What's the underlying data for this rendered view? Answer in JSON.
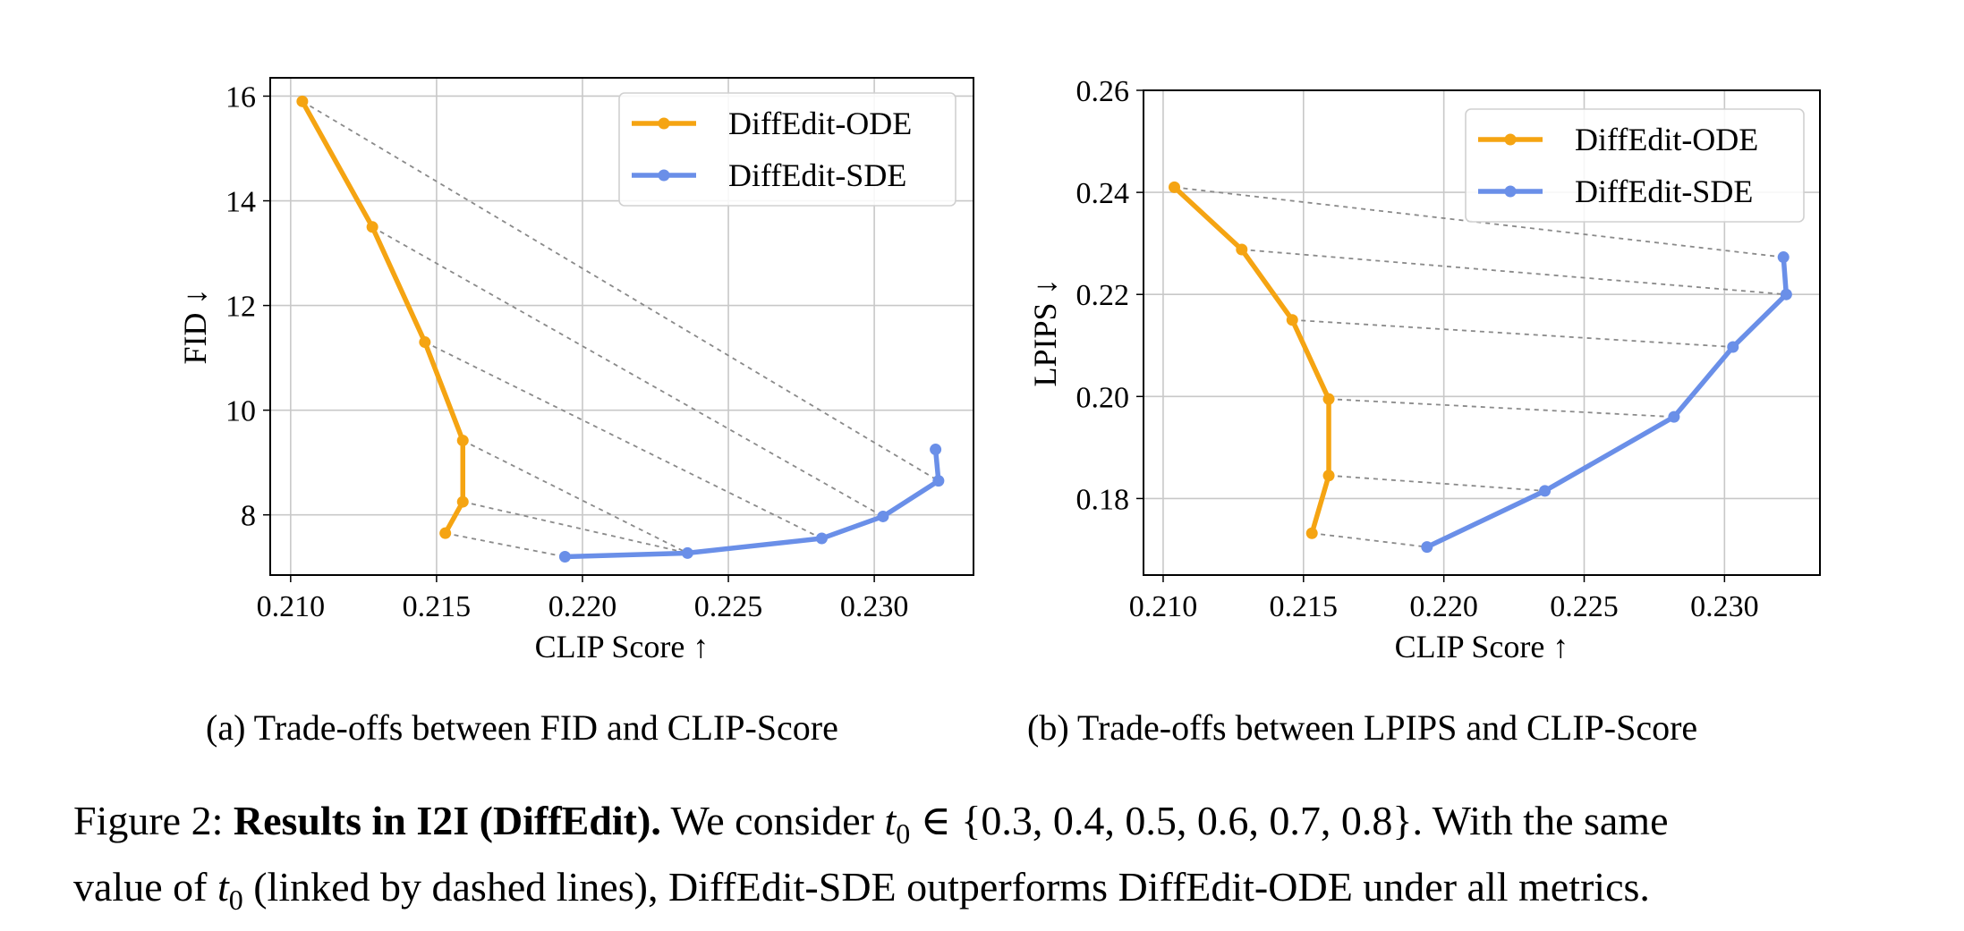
{
  "figure": {
    "label": "Figure 2:",
    "bold_title": "Results in I2I (DiffEdit).",
    "text_1": "We consider",
    "t_symbol": "t",
    "t_sub": "0",
    "set_text": "∈ {0.3, 0.4, 0.5, 0.6, 0.7, 0.8}.",
    "text_2": "With the same",
    "text_3": "value of",
    "text_4": "(linked by dashed lines), DiffEdit-SDE outperforms DiffEdit-ODE under all metrics."
  },
  "subcaptions": [
    "(a) Trade-offs between FID and CLIP-Score",
    "(b) Trade-offs between LPIPS and CLIP-Score"
  ],
  "colors": {
    "ode": "#F5A412",
    "sde": "#6A8FE8",
    "grid": "#C8C8C8",
    "dash": "#8A8A8A"
  },
  "chart_data": [
    {
      "type": "line",
      "title": "",
      "xlabel": "CLIP Score ↑",
      "ylabel": "FID ↓",
      "xlim": [
        0.2093,
        0.2334
      ],
      "ylim": [
        6.85,
        16.35
      ],
      "xticks": [
        0.21,
        0.215,
        0.22,
        0.225,
        0.23
      ],
      "xtick_labels": [
        "0.210",
        "0.215",
        "0.220",
        "0.225",
        "0.230"
      ],
      "yticks": [
        8,
        10,
        12,
        14,
        16
      ],
      "ytick_labels": [
        "8",
        "10",
        "12",
        "14",
        "16"
      ],
      "grid": true,
      "legend_position": "top-right",
      "series": [
        {
          "name": "DiffEdit-ODE",
          "color": "#F5A412",
          "x": [
            0.2104,
            0.2128,
            0.2146,
            0.2159,
            0.2159,
            0.2153
          ],
          "y": [
            15.9,
            13.5,
            11.3,
            9.42,
            8.25,
            7.65
          ]
        },
        {
          "name": "DiffEdit-SDE",
          "color": "#6A8FE8",
          "x": [
            0.2321,
            0.2322,
            0.2303,
            0.2282,
            0.2236,
            0.2194
          ],
          "y": [
            9.25,
            8.65,
            7.97,
            7.55,
            7.27,
            7.2
          ]
        }
      ],
      "links": [
        [
          0,
          1
        ],
        [
          1,
          2
        ],
        [
          2,
          3
        ],
        [
          3,
          4
        ],
        [
          4,
          4
        ],
        [
          5,
          5
        ]
      ]
    },
    {
      "type": "line",
      "title": "",
      "xlabel": "CLIP Score ↑",
      "ylabel": "LPIPS ↓",
      "xlim": [
        0.2093,
        0.2334
      ],
      "ylim": [
        0.165,
        0.26
      ],
      "xticks": [
        0.21,
        0.215,
        0.22,
        0.225,
        0.23
      ],
      "xtick_labels": [
        "0.210",
        "0.215",
        "0.220",
        "0.225",
        "0.230"
      ],
      "yticks": [
        0.18,
        0.2,
        0.22,
        0.24,
        0.26
      ],
      "ytick_labels": [
        "0.18",
        "0.20",
        "0.22",
        "0.24",
        "0.26"
      ],
      "grid": true,
      "legend_position": "top-right",
      "series": [
        {
          "name": "DiffEdit-ODE",
          "color": "#F5A412",
          "x": [
            0.2104,
            0.2128,
            0.2146,
            0.2159,
            0.2159,
            0.2153
          ],
          "y": [
            0.241,
            0.2288,
            0.215,
            0.1995,
            0.1845,
            0.1732
          ]
        },
        {
          "name": "DiffEdit-SDE",
          "color": "#6A8FE8",
          "x": [
            0.2321,
            0.2322,
            0.2303,
            0.2282,
            0.2236,
            0.2194
          ],
          "y": [
            0.2273,
            0.22,
            0.2097,
            0.196,
            0.1815,
            0.1705
          ]
        }
      ],
      "links": [
        [
          0,
          0
        ],
        [
          1,
          1
        ],
        [
          2,
          2
        ],
        [
          3,
          3
        ],
        [
          4,
          4
        ],
        [
          5,
          5
        ]
      ]
    }
  ]
}
